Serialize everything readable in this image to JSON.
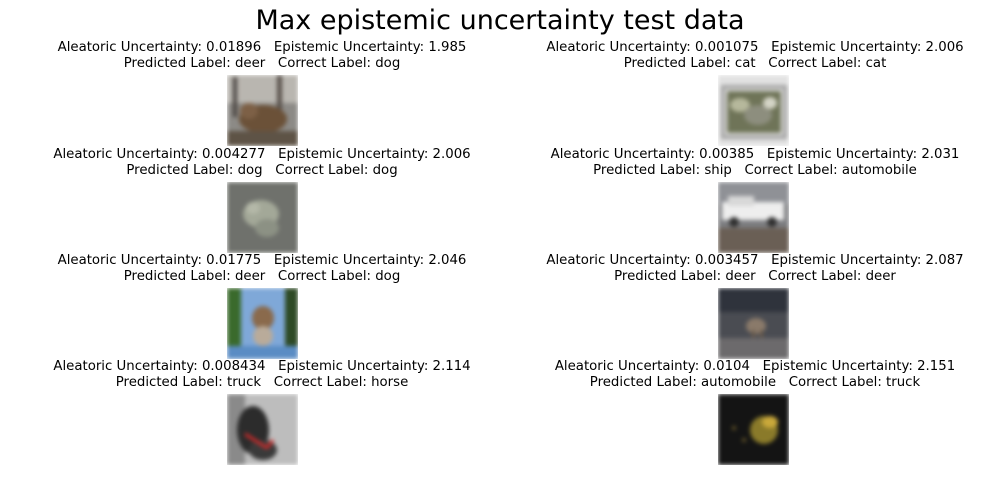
{
  "title": "Max epistemic uncertainty test data",
  "panels": [
    {
      "line1": "Aleatoric Uncertainty: 0.01896   Epistemic Uncertainty: 1.985",
      "line2": "Predicted Label: deer   Correct Label: dog"
    },
    {
      "line1": "Aleatoric Uncertainty: 0.001075   Epistemic Uncertainty: 2.006",
      "line2": "Predicted Label: cat   Correct Label: cat"
    },
    {
      "line1": "Aleatoric Uncertainty: 0.004277   Epistemic Uncertainty: 2.006",
      "line2": "Predicted Label: dog   Correct Label: dog"
    },
    {
      "line1": "Aleatoric Uncertainty: 0.00385   Epistemic Uncertainty: 2.031",
      "line2": "Predicted Label: ship   Correct Label: automobile"
    },
    {
      "line1": "Aleatoric Uncertainty: 0.01775   Epistemic Uncertainty: 2.046",
      "line2": "Predicted Label: deer   Correct Label: dog"
    },
    {
      "line1": "Aleatoric Uncertainty: 0.003457   Epistemic Uncertainty: 2.087",
      "line2": "Predicted Label: deer   Correct Label: deer"
    },
    {
      "line1": "Aleatoric Uncertainty: 0.008434   Epistemic Uncertainty: 2.114",
      "line2": "Predicted Label: truck   Correct Label: horse"
    },
    {
      "line1": "Aleatoric Uncertainty: 0.0104   Epistemic Uncertainty: 2.151",
      "line2": "Predicted Label: automobile   Correct Label: truck"
    }
  ]
}
